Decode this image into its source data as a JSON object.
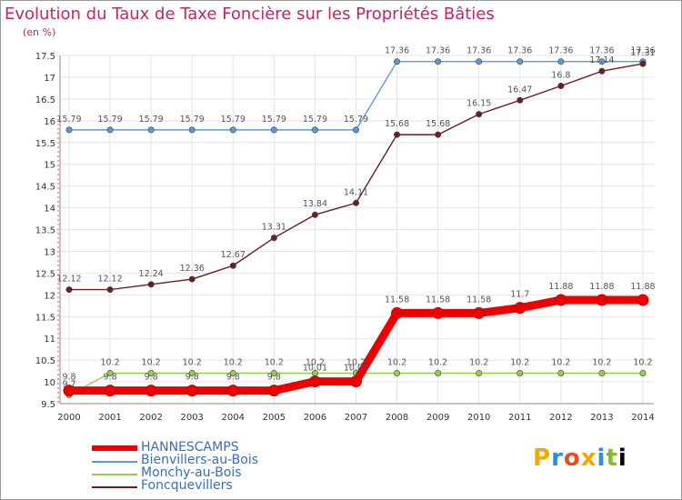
{
  "title": "Evolution du Taux de Taxe Foncière sur les Propriétés Bâties",
  "unit_label": "(en %)",
  "logo_text": "Proxiti",
  "chart_data": {
    "type": "line",
    "title": "Evolution du Taux de Taxe Foncière sur les Propriétés Bâties",
    "ylabel": "(en %)",
    "xlabel": "",
    "ylim": [
      9.5,
      17.5
    ],
    "yticks": [
      "9.5",
      "10",
      "10.5",
      "11",
      "11.5",
      "12",
      "12.5",
      "13",
      "13.5",
      "14",
      "14.5",
      "15",
      "15.5",
      "16",
      "16.5",
      "17",
      "17.5"
    ],
    "categories": [
      "2000",
      "2001",
      "2002",
      "2003",
      "2004",
      "2005",
      "2006",
      "2007",
      "2008",
      "2009",
      "2010",
      "2011",
      "2012",
      "2013",
      "2014"
    ],
    "series": [
      {
        "name": "HANNESCAMPS",
        "color": "#ee0000",
        "values": [
          9.8,
          9.8,
          9.8,
          9.8,
          9.8,
          9.8,
          10.01,
          10.01,
          11.58,
          11.58,
          11.58,
          11.7,
          11.88,
          11.88,
          11.88
        ],
        "labels": [
          "9.8",
          "9.8",
          "9.8",
          "9.8",
          "9.8",
          "9.8",
          "10.01",
          "10.01",
          "11.58",
          "11.58",
          "11.58",
          "11.7",
          "11.88",
          "11.88",
          "11.88"
        ]
      },
      {
        "name": "Bienvillers-au-Bois",
        "color": "#5b9bd5",
        "values": [
          15.79,
          15.79,
          15.79,
          15.79,
          15.79,
          15.79,
          15.79,
          15.79,
          17.36,
          17.36,
          17.36,
          17.36,
          17.36,
          17.36,
          17.36
        ],
        "labels": [
          "15.79",
          "15.79",
          "15.79",
          "15.79",
          "15.79",
          "15.79",
          "15.79",
          "15.79",
          "17.36",
          "17.36",
          "17.36",
          "17.36",
          "17.36",
          "17.36",
          "17.36"
        ]
      },
      {
        "name": "Monchy-au-Bois",
        "color": "#8fd14f",
        "values": [
          9.7,
          10.2,
          10.2,
          10.2,
          10.2,
          10.2,
          10.2,
          10.2,
          10.2,
          10.2,
          10.2,
          10.2,
          10.2,
          10.2,
          10.2
        ],
        "labels": [
          "9.7",
          "10.2",
          "10.2",
          "10.2",
          "10.2",
          "10.2",
          "10.2",
          "10.2",
          "10.2",
          "10.2",
          "10.2",
          "10.2",
          "10.2",
          "10.2",
          "10.2"
        ]
      },
      {
        "name": "Foncquevillers",
        "color": "#6b1e1e",
        "values": [
          12.12,
          12.12,
          12.24,
          12.36,
          12.67,
          13.31,
          13.84,
          14.11,
          15.68,
          15.68,
          16.15,
          16.47,
          16.8,
          17.14,
          17.31
        ],
        "labels": [
          "12.12",
          "12.12",
          "12.24",
          "12.36",
          "12.67",
          "13.31",
          "13.84",
          "14.11",
          "15.68",
          "15.68",
          "16.15",
          "16.47",
          "16.8",
          "17.14",
          "17.31"
        ]
      }
    ]
  }
}
